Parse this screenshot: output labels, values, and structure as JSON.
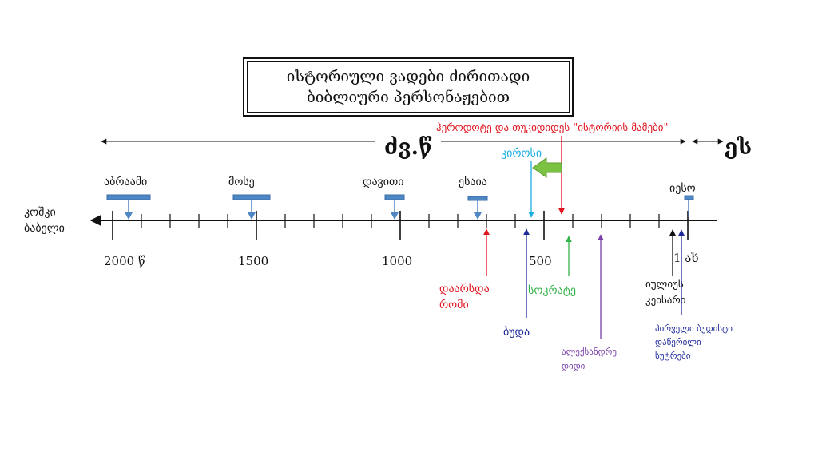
{
  "title": {
    "line1": "ისტორიული ვადები ძირითადი",
    "line2": "ბიბლიური პერსონაჟებით"
  },
  "eras": {
    "bce": "ძვ.წ",
    "ce": "ეს"
  },
  "left_label": [
    "კოშკი",
    "ბაბელი"
  ],
  "year_labels": [
    "2000 წ",
    "1500",
    "1000",
    "500",
    "1 ახ"
  ],
  "figures_above": [
    {
      "name": "აბრაამი",
      "color": "#111111"
    },
    {
      "name": "მოსე",
      "color": "#111111"
    },
    {
      "name": "დავითი",
      "color": "#111111"
    },
    {
      "name": "ესაია",
      "color": "#111111"
    },
    {
      "name": "იესო",
      "color": "#111111"
    }
  ],
  "events_above": [
    {
      "name": "ჰეროდოტე და თუკიდიდეს \"ისტორიის მამები\"",
      "color": "#e0141e"
    },
    {
      "name": "კიროსი",
      "color": "#19aee0"
    }
  ],
  "events_below": [
    {
      "lines": [
        "დაარსდა",
        "რომი"
      ],
      "color": "#e0141e"
    },
    {
      "lines": [
        "ბუდა"
      ],
      "color": "#1f2a99"
    },
    {
      "lines": [
        "სოკრატე"
      ],
      "color": "#34b34a"
    },
    {
      "lines": [
        "ალექსანდრე",
        "დიდი"
      ],
      "color": "#7a3fa8"
    },
    {
      "lines": [
        "იულიუს",
        "კეისარი"
      ],
      "color": "#111111"
    },
    {
      "lines": [
        "პირველი ბუდისტი",
        "დაწერილი",
        "სუტრები"
      ],
      "color": "#1f2a99"
    }
  ],
  "colors": {
    "bar": "#4f86c4",
    "bar_stroke": "#3a6da8",
    "green_arrow": "#7cc242"
  }
}
